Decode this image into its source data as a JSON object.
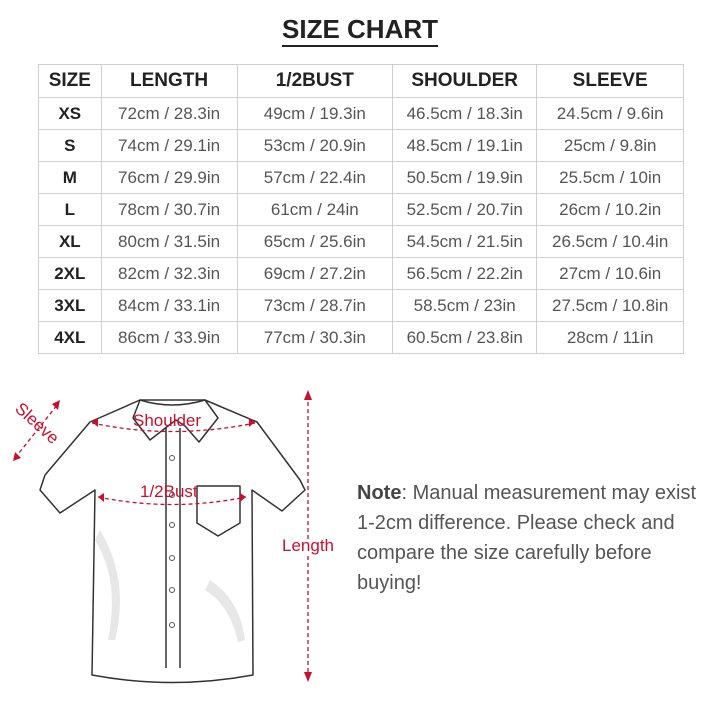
{
  "title": "SIZE CHART",
  "table": {
    "headers": [
      "SIZE",
      "LENGTH",
      "1/2BUST",
      "SHOULDER",
      "SLEEVE"
    ],
    "rows": [
      [
        "XS",
        "72cm / 28.3in",
        "49cm / 19.3in",
        "46.5cm / 18.3in",
        "24.5cm / 9.6in"
      ],
      [
        "S",
        "74cm / 29.1in",
        "53cm / 20.9in",
        "48.5cm / 19.1in",
        "25cm / 9.8in"
      ],
      [
        "M",
        "76cm / 29.9in",
        "57cm / 22.4in",
        "50.5cm / 19.9in",
        "25.5cm / 10in"
      ],
      [
        "L",
        "78cm / 30.7in",
        "61cm / 24in",
        "52.5cm / 20.7in",
        "26cm / 10.2in"
      ],
      [
        "XL",
        "80cm / 31.5in",
        "65cm / 25.6in",
        "54.5cm / 21.5in",
        "26.5cm / 10.4in"
      ],
      [
        "2XL",
        "82cm / 32.3in",
        "69cm / 27.2in",
        "56.5cm / 22.2in",
        "27cm / 10.6in"
      ],
      [
        "3XL",
        "84cm / 33.1in",
        "73cm / 28.7in",
        "58.5cm / 23in",
        "27.5cm / 10.8in"
      ],
      [
        "4XL",
        "86cm / 33.9in",
        "77cm / 30.3in",
        "60.5cm / 23.8in",
        "28cm / 11in"
      ]
    ]
  },
  "diagram": {
    "labels": {
      "sleeve": "Sleeve",
      "shoulder": "Shoulder",
      "bust": "1/2Bust",
      "length": "Length"
    },
    "accent_color": "#c8102e"
  },
  "note": {
    "label": "Note",
    "text": ": Manual measurement may exist 1-2cm difference. Please check and compare the size carefully before buying!"
  }
}
